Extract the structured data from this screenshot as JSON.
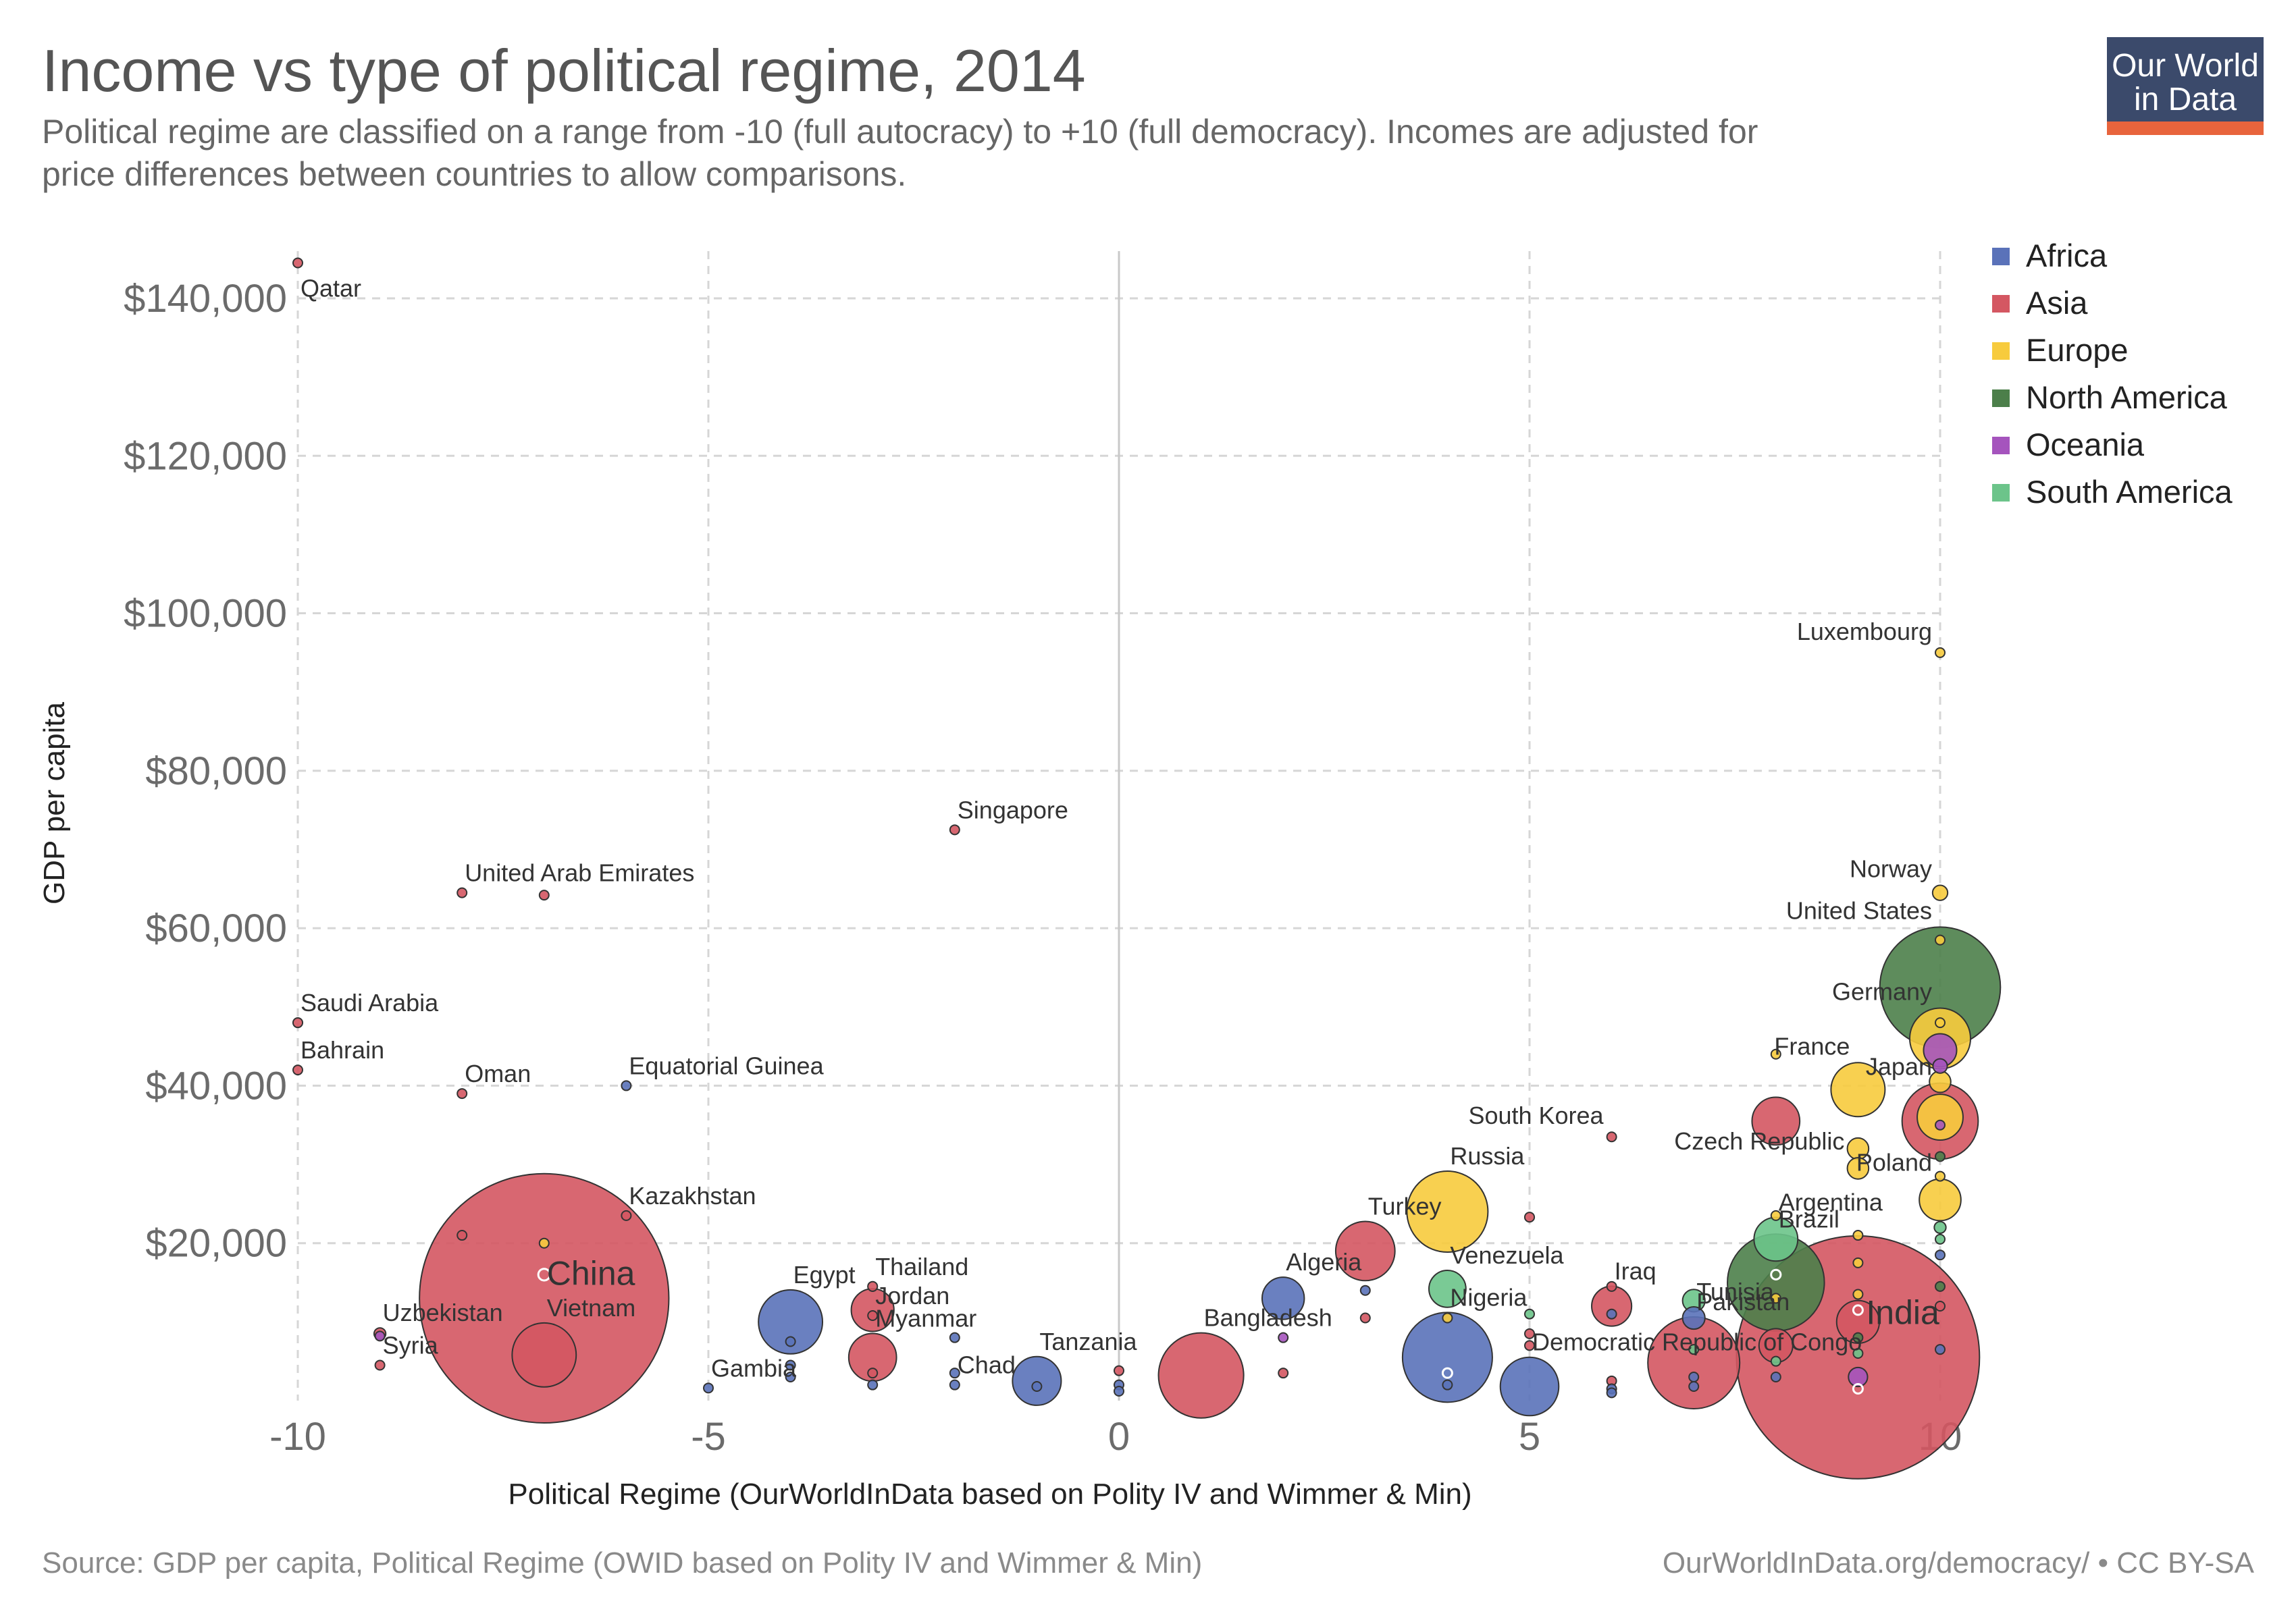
{
  "title": "Income vs type of political regime, 2014",
  "subtitle_lines": [
    "Political regime are classified on a range from -10 (full autocracy) to +10 (full democracy). Incomes are adjusted for",
    "price differences between countries to allow comparisons."
  ],
  "logo": {
    "line1": "Our World",
    "line2": "in Data",
    "bg_color": "#3b4a6b",
    "accent_color": "#e8643c"
  },
  "footer": {
    "source": "Source: GDP per capita, Political Regime (OWID based on Polity IV and Wimmer & Min)",
    "license": "OurWorldInData.org/democracy/ • CC BY-SA"
  },
  "chart_data": {
    "type": "scatter",
    "xlabel": "Political Regime (OurWorldInData based on Polity IV and Wimmer & Min)",
    "ylabel": "GDP per capita",
    "xlim": [
      -10,
      10
    ],
    "ylim": [
      0,
      146000
    ],
    "x_ticks": [
      {
        "value": -10,
        "label": "-10"
      },
      {
        "value": -5,
        "label": "-5"
      },
      {
        "value": 0,
        "label": "0"
      },
      {
        "value": 5,
        "label": "5"
      },
      {
        "value": 10,
        "label": "10"
      }
    ],
    "y_ticks": [
      {
        "value": 20000,
        "label": "$20,000"
      },
      {
        "value": 40000,
        "label": "$40,000"
      },
      {
        "value": 60000,
        "label": "$60,000"
      },
      {
        "value": 80000,
        "label": "$80,000"
      },
      {
        "value": 100000,
        "label": "$100,000"
      },
      {
        "value": 120000,
        "label": "$120,000"
      },
      {
        "value": 140000,
        "label": "$140,000"
      }
    ],
    "grid": true,
    "legend_position": "right",
    "series": [
      {
        "name": "Africa",
        "color": "#5a72b9"
      },
      {
        "name": "Asia",
        "color": "#d45762"
      },
      {
        "name": "Europe",
        "color": "#f7cb3d"
      },
      {
        "name": "North America",
        "color": "#4c7f4a"
      },
      {
        "name": "Oceania",
        "color": "#a554bd"
      },
      {
        "name": "South America",
        "color": "#6cc48a"
      }
    ],
    "points": [
      {
        "x": -10,
        "y": 144500,
        "region": "Asia",
        "size": 1,
        "label": "Qatar",
        "lpos": "below-right"
      },
      {
        "x": -8,
        "y": 64500,
        "region": "Asia",
        "size": 1,
        "label": "United Arab Emirates",
        "lpos": "above-right"
      },
      {
        "x": -7,
        "y": 64200,
        "region": "Asia",
        "size": 0.3
      },
      {
        "x": -10,
        "y": 48000,
        "region": "Asia",
        "size": 2,
        "label": "Saudi Arabia",
        "lpos": "above-right"
      },
      {
        "x": -10,
        "y": 42000,
        "region": "Asia",
        "size": 0.5,
        "label": "Bahrain",
        "lpos": "above-right"
      },
      {
        "x": -8,
        "y": 39000,
        "region": "Asia",
        "size": 0.8,
        "label": "Oman",
        "lpos": "above-right"
      },
      {
        "x": -6,
        "y": 40000,
        "region": "Africa",
        "size": 0.5,
        "label": "Equatorial Guinea",
        "lpos": "above-right"
      },
      {
        "x": -6,
        "y": 23500,
        "region": "Asia",
        "size": 1.8,
        "label": "Kazakhstan",
        "lpos": "above-right"
      },
      {
        "x": -8,
        "y": 21000,
        "region": "Asia",
        "size": 0.4
      },
      {
        "x": -7,
        "y": 20000,
        "region": "Europe",
        "size": 0.4
      },
      {
        "x": -7,
        "y": 13000,
        "region": "Asia",
        "size": 1364,
        "label": "China",
        "lpos": "above-right-big"
      },
      {
        "x": -7,
        "y": 16000,
        "region": "Asia",
        "size": 3,
        "hollow": true
      },
      {
        "x": -7,
        "y": 5800,
        "region": "Asia",
        "size": 90,
        "label": "Vietnam",
        "lpos": "above-right"
      },
      {
        "x": -9,
        "y": 8500,
        "region": "Asia",
        "size": 3,
        "label": "Uzbekistan",
        "lpos": "above-right"
      },
      {
        "x": -9,
        "y": 8200,
        "region": "Oceania",
        "size": 0.3
      },
      {
        "x": -9,
        "y": 4500,
        "region": "Asia",
        "size": 1.8,
        "label": "Syria",
        "lpos": "above-right"
      },
      {
        "x": -5,
        "y": 1600,
        "region": "Africa",
        "size": 1,
        "label": "Gambia",
        "lpos": "above-right"
      },
      {
        "x": -4,
        "y": 10000,
        "region": "Africa",
        "size": 90,
        "label": "Egypt",
        "lpos": "above-right"
      },
      {
        "x": -4,
        "y": 7500,
        "region": "Africa",
        "size": 1.5
      },
      {
        "x": -4,
        "y": 4500,
        "region": "Africa",
        "size": 0.5
      },
      {
        "x": -4,
        "y": 3000,
        "region": "Africa",
        "size": 1
      },
      {
        "x": -3,
        "y": 14500,
        "region": "Asia",
        "size": 2,
        "label": "Thailand",
        "lpos": "above-right"
      },
      {
        "x": -3,
        "y": 11500,
        "region": "Asia",
        "size": 40
      },
      {
        "x": -3,
        "y": 10800,
        "region": "Asia",
        "size": 0.6,
        "label": "Jordan",
        "lpos": "above-right"
      },
      {
        "x": -3,
        "y": 5500,
        "region": "Asia",
        "size": 50,
        "label": "Myanmar",
        "lpos": "above-right"
      },
      {
        "x": -3,
        "y": 3500,
        "region": "Asia",
        "size": 0.3
      },
      {
        "x": -3,
        "y": 2000,
        "region": "Africa",
        "size": 0.6
      },
      {
        "x": -2,
        "y": 72500,
        "region": "Asia",
        "size": 1,
        "label": "Singapore",
        "lpos": "above-right"
      },
      {
        "x": -2,
        "y": 8000,
        "region": "Africa",
        "size": 0.6
      },
      {
        "x": -2,
        "y": 3500,
        "region": "Africa",
        "size": 0.3
      },
      {
        "x": -2,
        "y": 2000,
        "region": "Africa",
        "size": 1,
        "label": "Chad",
        "lpos": "above-right"
      },
      {
        "x": -1,
        "y": 2500,
        "region": "Africa",
        "size": 52,
        "label": "Tanzania",
        "lpos": "above-right"
      },
      {
        "x": -1,
        "y": 1800,
        "region": "Africa",
        "size": 0.6
      },
      {
        "x": 0,
        "y": 3800,
        "region": "Asia",
        "size": 0.2
      },
      {
        "x": 0,
        "y": 2000,
        "region": "Africa",
        "size": 0.3
      },
      {
        "x": 0,
        "y": 1200,
        "region": "Africa",
        "size": 0.3
      },
      {
        "x": 1,
        "y": 3200,
        "region": "Asia",
        "size": 159,
        "label": "Bangladesh",
        "lpos": "above-right"
      },
      {
        "x": 2,
        "y": 13000,
        "region": "Africa",
        "size": 39,
        "label": "Algeria",
        "lpos": "above-right"
      },
      {
        "x": 2,
        "y": 8000,
        "region": "Oceania",
        "size": 0.3
      },
      {
        "x": 2,
        "y": 3500,
        "region": "Asia",
        "size": 0.6
      },
      {
        "x": 3,
        "y": 19000,
        "region": "Asia",
        "size": 77,
        "label": "Turkey",
        "lpos": "above-right"
      },
      {
        "x": 3,
        "y": 14000,
        "region": "Africa",
        "size": 0.2
      },
      {
        "x": 3,
        "y": 10500,
        "region": "Asia",
        "size": 0.6
      },
      {
        "x": 4,
        "y": 24000,
        "region": "Europe",
        "size": 144,
        "label": "Russia",
        "lpos": "above-right"
      },
      {
        "x": 4,
        "y": 14200,
        "region": "South America",
        "size": 30,
        "label": "Venezuela",
        "lpos": "above-right"
      },
      {
        "x": 4,
        "y": 10500,
        "region": "Europe",
        "size": 1.5
      },
      {
        "x": 4,
        "y": 5500,
        "region": "Africa",
        "size": 177,
        "label": "Nigeria",
        "lpos": "above-right"
      },
      {
        "x": 4,
        "y": 3500,
        "region": "Africa",
        "size": 0.5,
        "hollow": true
      },
      {
        "x": 4,
        "y": 2000,
        "region": "Africa",
        "size": 1
      },
      {
        "x": 5,
        "y": 23300,
        "region": "Asia",
        "size": 2
      },
      {
        "x": 5,
        "y": 11000,
        "region": "South America",
        "size": 0.5
      },
      {
        "x": 5,
        "y": 8500,
        "region": "Asia",
        "size": 0.2
      },
      {
        "x": 5,
        "y": 7000,
        "region": "Asia",
        "size": 0.2
      },
      {
        "x": 5,
        "y": 1800,
        "region": "Africa",
        "size": 75,
        "label": "Democratic Republic of Congo",
        "lpos": "above-right"
      },
      {
        "x": 6,
        "y": 33500,
        "region": "Asia",
        "size": 0.5,
        "label": "South Korea",
        "lpos": "above-left"
      },
      {
        "x": 6,
        "y": 14500,
        "region": "Asia",
        "size": 0.2
      },
      {
        "x": 6,
        "y": 12000,
        "region": "Asia",
        "size": 35,
        "label": "Iraq",
        "lpos": "above-right"
      },
      {
        "x": 6,
        "y": 11000,
        "region": "Africa",
        "size": 0.3
      },
      {
        "x": 6,
        "y": 2500,
        "region": "Asia",
        "size": 0.6
      },
      {
        "x": 6,
        "y": 1500,
        "region": "Africa",
        "size": 0.2
      },
      {
        "x": 6,
        "y": 1000,
        "region": "Africa",
        "size": 0.2
      },
      {
        "x": 7,
        "y": 12700,
        "region": "South America",
        "size": 11
      },
      {
        "x": 7,
        "y": 10500,
        "region": "Africa",
        "size": 11,
        "label": "Tunisia",
        "lpos": "above-right"
      },
      {
        "x": 7,
        "y": 6500,
        "region": "South America",
        "size": 1
      },
      {
        "x": 7,
        "y": 4800,
        "region": "Asia",
        "size": 185,
        "label": "Pakistan",
        "lpos": "above-right"
      },
      {
        "x": 7,
        "y": 3000,
        "region": "Africa",
        "size": 0.6
      },
      {
        "x": 7,
        "y": 1800,
        "region": "Africa",
        "size": 0.4
      },
      {
        "x": 8,
        "y": 44000,
        "region": "Europe",
        "size": 0.3
      },
      {
        "x": 8,
        "y": 35500,
        "region": "Asia",
        "size": 50,
        "label": "South Korea",
        "lpos": "above-left-hidden"
      },
      {
        "x": 8,
        "y": 23500,
        "region": "Europe",
        "size": 0.3
      },
      {
        "x": 8,
        "y": 20500,
        "region": "South America",
        "size": 42,
        "label": "Argentina",
        "lpos": "above-right"
      },
      {
        "x": 8,
        "y": 15000,
        "region": "North America",
        "size": 206,
        "label": "Brazil",
        "lpos": "above-right"
      },
      {
        "x": 8,
        "y": 16000,
        "region": "South America",
        "size": 2,
        "hollow": true
      },
      {
        "x": 8,
        "y": 13000,
        "region": "Europe",
        "size": 0.4
      },
      {
        "x": 8,
        "y": 7000,
        "region": "Asia",
        "size": 25
      },
      {
        "x": 8,
        "y": 5000,
        "region": "South America",
        "size": 0.5
      },
      {
        "x": 8,
        "y": 3000,
        "region": "Africa",
        "size": 0.6
      },
      {
        "x": 9,
        "y": 39500,
        "region": "Europe",
        "size": 64,
        "label": "France",
        "lpos": "above-left"
      },
      {
        "x": 9,
        "y": 32000,
        "region": "Europe",
        "size": 10
      },
      {
        "x": 9,
        "y": 21000,
        "region": "Europe",
        "size": 0.5
      },
      {
        "x": 9,
        "y": 17500,
        "region": "Europe",
        "size": 0.3
      },
      {
        "x": 9,
        "y": 13500,
        "region": "Europe",
        "size": 0.4
      },
      {
        "x": 9,
        "y": 11500,
        "region": "Africa",
        "size": 1,
        "hollow": true
      },
      {
        "x": 9,
        "y": 10000,
        "region": "Asia",
        "size": 40
      },
      {
        "x": 9,
        "y": 8000,
        "region": "North America",
        "size": 0.6
      },
      {
        "x": 9,
        "y": 6000,
        "region": "South America",
        "size": 0.5
      },
      {
        "x": 9,
        "y": 5500,
        "region": "Asia",
        "size": 1295,
        "label": "India",
        "lpos": "above-right-big"
      },
      {
        "x": 9,
        "y": 3000,
        "region": "Oceania",
        "size": 8
      },
      {
        "x": 9,
        "y": 1500,
        "region": "Africa",
        "size": 0.6,
        "hollow": true
      },
      {
        "x": 10,
        "y": 95000,
        "region": "Europe",
        "size": 0.6,
        "label": "Luxembourg",
        "lpos": "above-left"
      },
      {
        "x": 10,
        "y": 64500,
        "region": "Europe",
        "size": 5,
        "label": "Norway",
        "lpos": "above-left"
      },
      {
        "x": 10,
        "y": 58500,
        "region": "Europe",
        "size": 0.3
      },
      {
        "x": 10,
        "y": 52500,
        "region": "North America",
        "size": 319,
        "label": "United States",
        "lpos": "above-left"
      },
      {
        "x": 10,
        "y": 48000,
        "region": "Europe",
        "size": 0.4
      },
      {
        "x": 10,
        "y": 46000,
        "region": "Europe",
        "size": 81,
        "label": "Germany",
        "lpos": "above-left"
      },
      {
        "x": 10,
        "y": 44500,
        "region": "Oceania",
        "size": 24
      },
      {
        "x": 10,
        "y": 42500,
        "region": "Oceania",
        "size": 4.5
      },
      {
        "x": 10,
        "y": 40500,
        "region": "Europe",
        "size": 10
      },
      {
        "x": 10,
        "y": 36000,
        "region": "Europe",
        "size": 46
      },
      {
        "x": 10,
        "y": 35500,
        "region": "Asia",
        "size": 127,
        "label": "Japan",
        "lpos": "above-left"
      },
      {
        "x": 10,
        "y": 35000,
        "region": "Oceania",
        "size": 1
      },
      {
        "x": 10,
        "y": 31000,
        "region": "North America",
        "size": 0.3
      },
      {
        "x": 10,
        "y": 28500,
        "region": "Europe",
        "size": 0.4
      },
      {
        "x": 10,
        "y": 25500,
        "region": "Europe",
        "size": 38,
        "label": "Poland",
        "lpos": "above-left"
      },
      {
        "x": 10,
        "y": 22000,
        "region": "South America",
        "size": 3
      },
      {
        "x": 10,
        "y": 20500,
        "region": "South America",
        "size": 1
      },
      {
        "x": 10,
        "y": 18500,
        "region": "Africa",
        "size": 0.3
      },
      {
        "x": 10,
        "y": 14500,
        "region": "North America",
        "size": 0.3
      },
      {
        "x": 10,
        "y": 12000,
        "region": "Asia",
        "size": 0.3
      },
      {
        "x": 10,
        "y": 6500,
        "region": "Africa",
        "size": 0.3
      },
      {
        "x": 9,
        "y": 29500,
        "region": "Europe",
        "size": 10,
        "label": "Czech Republic",
        "lpos": "above-left-far"
      }
    ]
  }
}
